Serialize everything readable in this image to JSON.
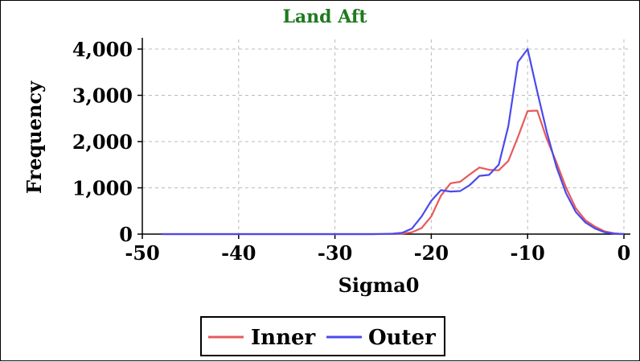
{
  "chart_data": {
    "type": "line",
    "title": "Land Aft",
    "xlabel": "Sigma0",
    "ylabel": "Frequency",
    "xlim": [
      -50,
      0
    ],
    "ylim": [
      0,
      4000
    ],
    "x_ticks": [
      "-50",
      "-40",
      "-30",
      "-20",
      "-10",
      "0"
    ],
    "y_ticks": [
      "0",
      "1,000",
      "2,000",
      "3,000",
      "4,000"
    ],
    "grid": true,
    "legend_position": "bottom-center",
    "colors": {
      "title": "#1e7a1e",
      "Inner": "#e85a5a",
      "Outer": "#4a4aee",
      "grid": "#bbbbbb"
    },
    "series": [
      {
        "name": "Inner",
        "x": [
          -48,
          -30,
          -26,
          -25,
          -24,
          -23,
          -22,
          -21,
          -20,
          -19,
          -18,
          -17,
          -16,
          -15,
          -14,
          -13,
          -12,
          -11,
          -10,
          -9,
          -8,
          -7,
          -6,
          -5,
          -4,
          -3,
          -2,
          -1,
          0
        ],
        "y": [
          0,
          0,
          0,
          2,
          5,
          10,
          40,
          130,
          380,
          830,
          1100,
          1130,
          1290,
          1440,
          1390,
          1380,
          1580,
          2100,
          2660,
          2670,
          2050,
          1550,
          1000,
          560,
          300,
          160,
          60,
          15,
          0
        ]
      },
      {
        "name": "Outer",
        "x": [
          -48,
          -30,
          -26,
          -25,
          -24,
          -23,
          -22,
          -21,
          -20,
          -19,
          -18,
          -17,
          -16,
          -15,
          -14,
          -13,
          -12,
          -11,
          -10,
          -9,
          -8,
          -7,
          -6,
          -5,
          -4,
          -3,
          -2,
          -1,
          0
        ],
        "y": [
          0,
          0,
          0,
          3,
          8,
          30,
          120,
          380,
          720,
          950,
          920,
          930,
          1060,
          1260,
          1280,
          1500,
          2330,
          3720,
          4000,
          3080,
          2200,
          1450,
          880,
          480,
          250,
          120,
          40,
          10,
          0
        ]
      }
    ]
  }
}
